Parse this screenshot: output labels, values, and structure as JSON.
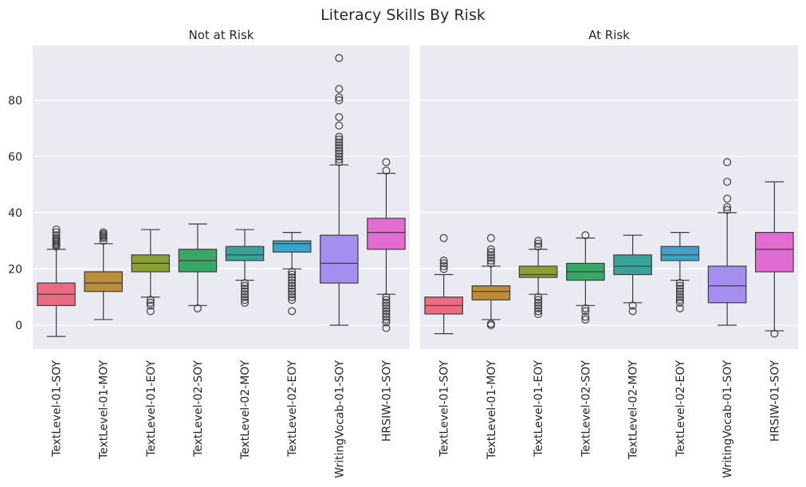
{
  "chart_data": {
    "type": "box",
    "title": "Literacy Skills By Risk",
    "ylim": [
      -8.5,
      99.5
    ],
    "yticks": [
      0,
      20,
      40,
      60,
      80
    ],
    "grid": true,
    "categories": [
      "TextLevel-01-SOY",
      "TextLevel-01-MOY",
      "TextLevel-01-EOY",
      "TextLevel-02-SOY",
      "TextLevel-02-MOY",
      "TextLevel-02-EOY",
      "WritingVocab-01-SOY",
      "HRSIW-01-SOY"
    ],
    "colors": [
      "#ea6b82",
      "#bd8c3a",
      "#8ba133",
      "#37a866",
      "#38a39a",
      "#3ca4c9",
      "#a48ef0",
      "#e36cd2"
    ],
    "panels": [
      {
        "title": "Not at Risk",
        "boxes": [
          {
            "category": "TextLevel-01-SOY",
            "whislo": -4,
            "q1": 7,
            "med": 11,
            "q3": 15,
            "whishi": 27,
            "fliers": [
              28,
              28.5,
              29,
              29.5,
              30,
              30.5,
              31,
              32,
              33,
              34
            ]
          },
          {
            "category": "TextLevel-01-MOY",
            "whislo": 2,
            "q1": 12,
            "med": 15,
            "q3": 19,
            "whishi": 29,
            "fliers": [
              30,
              31,
              31.5,
              32,
              32.5,
              33
            ]
          },
          {
            "category": "TextLevel-01-EOY",
            "whislo": 10,
            "q1": 19,
            "med": 22,
            "q3": 25,
            "whishi": 34,
            "fliers": [
              5,
              7,
              8,
              9
            ]
          },
          {
            "category": "TextLevel-02-SOY",
            "whislo": 7,
            "q1": 19,
            "med": 23,
            "q3": 27,
            "whishi": 36,
            "fliers": [
              6
            ]
          },
          {
            "category": "TextLevel-02-MOY",
            "whislo": 16,
            "q1": 23,
            "med": 25,
            "q3": 28,
            "whishi": 34,
            "fliers": [
              8,
              9,
              10,
              11,
              12,
              13,
              14,
              15
            ]
          },
          {
            "category": "TextLevel-02-EOY",
            "whislo": 20,
            "q1": 26,
            "med": 29,
            "q3": 30,
            "whishi": 33,
            "fliers": [
              5,
              9,
              10,
              11,
              12,
              13,
              14,
              15,
              16,
              17,
              18,
              19
            ]
          },
          {
            "category": "WritingVocab-01-SOY",
            "whislo": 0,
            "q1": 15,
            "med": 22,
            "q3": 32,
            "whishi": 57,
            "fliers": [
              58,
              59,
              60,
              61,
              62,
              63,
              64,
              65,
              66,
              67,
              71,
              74,
              80,
              81,
              84,
              95
            ]
          },
          {
            "category": "HRSIW-01-SOY",
            "whislo": 11,
            "q1": 27,
            "med": 33,
            "q3": 38,
            "whishi": 54,
            "fliers": [
              -1,
              1,
              2,
              3,
              4,
              5,
              6,
              7,
              8,
              9,
              10,
              55,
              58
            ]
          }
        ]
      },
      {
        "title": "At Risk",
        "boxes": [
          {
            "category": "TextLevel-01-SOY",
            "whislo": -3,
            "q1": 4,
            "med": 7,
            "q3": 10,
            "whishi": 18,
            "fliers": [
              20,
              21,
              22,
              23,
              31
            ]
          },
          {
            "category": "TextLevel-01-MOY",
            "whislo": 2,
            "q1": 9,
            "med": 12,
            "q3": 14,
            "whishi": 21,
            "fliers": [
              0,
              0.5,
              22,
              23,
              24,
              25,
              26,
              27,
              31
            ]
          },
          {
            "category": "TextLevel-01-EOY",
            "whislo": 11,
            "q1": 17,
            "med": 18,
            "q3": 21,
            "whishi": 27,
            "fliers": [
              4,
              5,
              6,
              7,
              8,
              9,
              10,
              28,
              29,
              30
            ]
          },
          {
            "category": "TextLevel-02-SOY",
            "whislo": 7,
            "q1": 16,
            "med": 19,
            "q3": 22,
            "whishi": 31,
            "fliers": [
              2,
              3,
              5,
              6,
              32
            ]
          },
          {
            "category": "TextLevel-02-MOY",
            "whislo": 8,
            "q1": 18,
            "med": 21,
            "q3": 25,
            "whishi": 32,
            "fliers": [
              5,
              7
            ]
          },
          {
            "category": "TextLevel-02-EOY",
            "whislo": 16,
            "q1": 23,
            "med": 25,
            "q3": 28,
            "whishi": 33,
            "fliers": [
              6,
              8,
              9,
              10,
              11,
              12,
              13,
              14,
              15
            ]
          },
          {
            "category": "WritingVocab-01-SOY",
            "whislo": 0,
            "q1": 8,
            "med": 14,
            "q3": 21,
            "whishi": 40,
            "fliers": [
              41,
              42,
              45,
              51,
              58
            ]
          },
          {
            "category": "HRSIW-01-SOY",
            "whislo": -2,
            "q1": 19,
            "med": 27,
            "q3": 33,
            "whishi": 51,
            "fliers": [
              -3
            ]
          }
        ]
      }
    ]
  }
}
